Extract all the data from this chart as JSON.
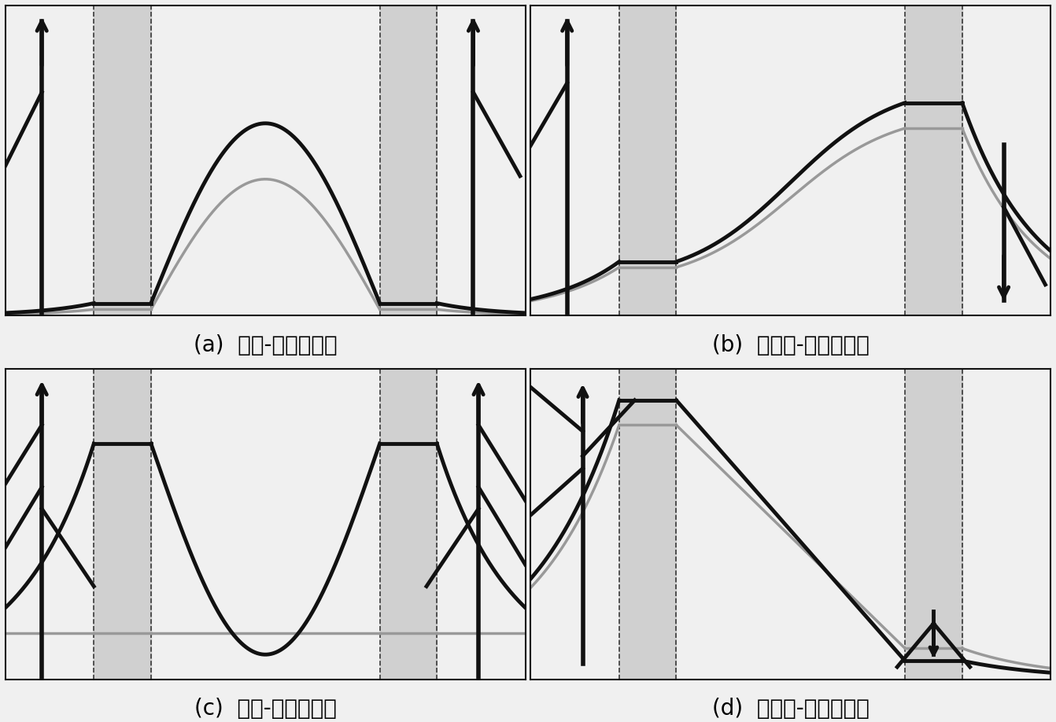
{
  "panels": [
    {
      "label": "(a)  对称-低能量模式",
      "type": "sym_low"
    },
    {
      "label": "(b)  反对称-低能量模式",
      "type": "antisym_low"
    },
    {
      "label": "(c)  对称-高能量模式",
      "type": "sym_high"
    },
    {
      "label": "(d)  反对称-高能量模式",
      "type": "antisym_high"
    }
  ],
  "dark": "#111111",
  "gray": "#999999",
  "shaded": "#d0d0d0",
  "bg": "#f0f0f0",
  "lw_dark": 3.5,
  "lw_gray": 2.5,
  "xl1": 0.17,
  "xl2": 0.28,
  "xr1": 0.72,
  "xr2": 0.83,
  "label_fontsize": 20
}
